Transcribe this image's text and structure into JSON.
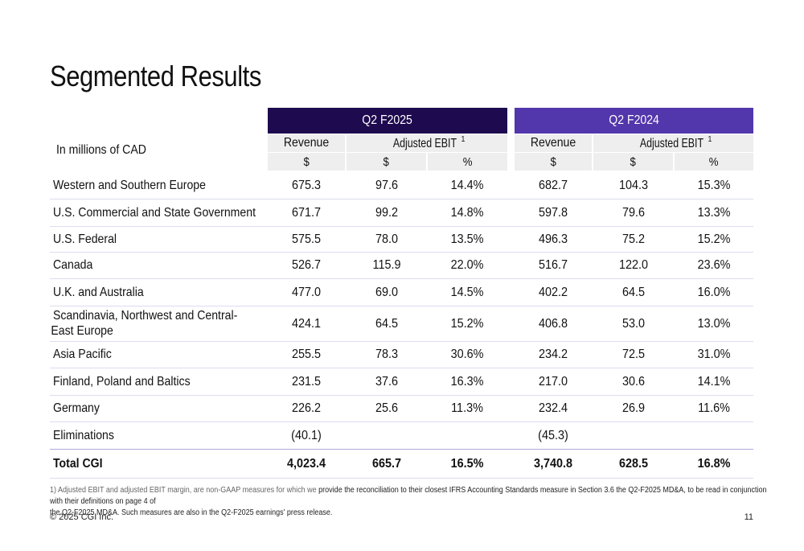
{
  "title": "Segmented Results",
  "periods": [
    {
      "label": "Q2 F2025",
      "color": "#1e0a4f"
    },
    {
      "label": "Q2 F2024",
      "color": "#5236ab"
    }
  ],
  "headers": {
    "revenue": "Revenue",
    "adjusted_ebit": "Adjusted EBIT",
    "footnote_mark": "1",
    "unit_dollar": "$",
    "unit_percent": "%",
    "in_millions": "In millions of CAD"
  },
  "rows": [
    {
      "label": "Western and Southern Europe",
      "v": [
        "675.3",
        "97.6",
        "14.4%",
        "682.7",
        "104.3",
        "15.3%"
      ]
    },
    {
      "label": "U.S. Commercial and State Government",
      "v": [
        "671.7",
        "99.2",
        "14.8%",
        "597.8",
        "79.6",
        "13.3%"
      ]
    },
    {
      "label": "U.S. Federal",
      "v": [
        "575.5",
        "78.0",
        "13.5%",
        "496.3",
        "75.2",
        "15.2%"
      ]
    },
    {
      "label": "Canada",
      "v": [
        "526.7",
        "115.9",
        "22.0%",
        "516.7",
        "122.0",
        "23.6%"
      ]
    },
    {
      "label": "U.K. and Australia",
      "v": [
        "477.0",
        "69.0",
        "14.5%",
        "402.2",
        "64.5",
        "16.0%"
      ]
    },
    {
      "label": "Scandinavia, Northwest and Central-",
      "label2": "East Europe",
      "v": [
        "424.1",
        "64.5",
        "15.2%",
        "406.8",
        "53.0",
        "13.0%"
      ]
    },
    {
      "label": "Asia Pacific",
      "v": [
        "255.5",
        "78.3",
        "30.6%",
        "234.2",
        "72.5",
        "31.0%"
      ]
    },
    {
      "label": "Finland, Poland and Baltics",
      "v": [
        "231.5",
        "37.6",
        "16.3%",
        "217.0",
        "30.6",
        "14.1%"
      ]
    },
    {
      "label": "Germany",
      "v": [
        "226.2",
        "25.6",
        "11.3%",
        "232.4",
        "26.9",
        "11.6%"
      ]
    },
    {
      "label": "Eliminations",
      "v": [
        "(40.1)",
        "",
        "",
        "(45.3)",
        "",
        ""
      ]
    },
    {
      "label": "Total CGI",
      "v": [
        "4,023.4",
        "665.7",
        "16.5%",
        "3,740.8",
        "628.5",
        "16.8%"
      ],
      "total": true
    }
  ],
  "footnote": {
    "muted": "1) Adjusted EBIT and adjusted EBIT margin, are non-GAAP measures for which we",
    "main": " provide the reconciliation to their closest IFRS Accounting Standards measure in Section 3.6 the Q2-F2025 MD&A, to be read in conjunction with their definitions on page 4 of",
    "line2": "the Q2-F2025 MD&A.  Such measures are also in the Q2-F2025 earnings' press release."
  },
  "copyright": "© 2025 CGI Inc.",
  "page_number": "11"
}
